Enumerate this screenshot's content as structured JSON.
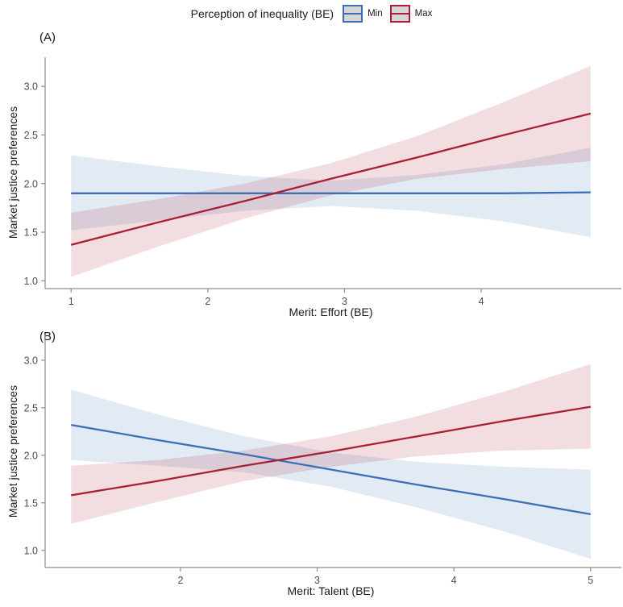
{
  "legend": {
    "title": "Perception of inequality (BE)",
    "items": [
      {
        "label": "Min",
        "color": "#3d6fb4"
      },
      {
        "label": "Max",
        "color": "#aa1f33"
      }
    ]
  },
  "colors": {
    "min_line": "#3d6fb4",
    "max_line": "#aa1f33",
    "axis": "#8e8e8e",
    "tick_text": "#4d4d4d",
    "ribbon_opacity": "0.15",
    "background": "#ffffff"
  },
  "chart_data": [
    {
      "type": "line",
      "tag": "(A)",
      "xlabel": "Merit: Effort (BE)",
      "ylabel": "Market justice preferences",
      "xlim": [
        0.81,
        4.99
      ],
      "ylim": [
        0.92,
        3.3
      ],
      "xticks": [
        "1",
        "2",
        "3",
        "4"
      ],
      "yticks": [
        "1.0",
        "1.5",
        "2.0",
        "2.5",
        "3.0"
      ],
      "legend_position": "top",
      "grid": "off",
      "series": [
        {
          "name": "Min",
          "color": "#3d6fb4",
          "x": [
            1,
            1.633,
            2.267,
            2.9,
            3.533,
            4.167,
            4.8
          ],
          "y": [
            1.9,
            1.9,
            1.9,
            1.9,
            1.9,
            1.9,
            1.91
          ],
          "ci_lower": [
            1.52,
            1.62,
            1.72,
            1.77,
            1.72,
            1.61,
            1.45
          ],
          "ci_upper": [
            2.29,
            2.18,
            2.08,
            2.03,
            2.09,
            2.2,
            2.37
          ]
        },
        {
          "name": "Max",
          "color": "#aa1f33",
          "x": [
            1,
            1.633,
            2.267,
            2.9,
            3.533,
            4.167,
            4.8
          ],
          "y": [
            1.37,
            1.6,
            1.82,
            2.05,
            2.27,
            2.5,
            2.72
          ],
          "ci_lower": [
            1.04,
            1.35,
            1.64,
            1.88,
            2.05,
            2.15,
            2.23
          ],
          "ci_upper": [
            1.7,
            1.84,
            2.0,
            2.21,
            2.49,
            2.84,
            3.21
          ]
        }
      ]
    },
    {
      "type": "line",
      "tag": "(B)",
      "xlabel": "Merit: Talent (BE)",
      "ylabel": "Market justice preferences",
      "xlim": [
        1.01,
        5.19
      ],
      "ylim": [
        0.82,
        3.27
      ],
      "xticks": [
        "2",
        "3",
        "4",
        "5"
      ],
      "yticks": [
        "1.0",
        "1.5",
        "2.0",
        "2.5",
        "3.0"
      ],
      "legend_position": "none",
      "grid": "off",
      "series": [
        {
          "name": "Min",
          "color": "#3d6fb4",
          "x": [
            1.2,
            1.833,
            2.467,
            3.1,
            3.733,
            4.367,
            5
          ],
          "y": [
            2.32,
            2.16,
            2.01,
            1.85,
            1.69,
            1.54,
            1.38
          ],
          "ci_lower": [
            1.95,
            1.89,
            1.82,
            1.67,
            1.45,
            1.2,
            0.91
          ],
          "ci_upper": [
            2.69,
            2.43,
            2.2,
            2.03,
            1.93,
            1.88,
            1.85
          ]
        },
        {
          "name": "Max",
          "color": "#aa1f33",
          "x": [
            1.2,
            1.833,
            2.467,
            3.1,
            3.733,
            4.367,
            5
          ],
          "y": [
            1.58,
            1.73,
            1.89,
            2.04,
            2.2,
            2.36,
            2.51
          ],
          "ci_lower": [
            1.28,
            1.51,
            1.73,
            1.88,
            1.99,
            2.05,
            2.07
          ],
          "ci_upper": [
            1.89,
            1.95,
            2.05,
            2.2,
            2.41,
            2.67,
            2.96
          ]
        }
      ]
    }
  ]
}
